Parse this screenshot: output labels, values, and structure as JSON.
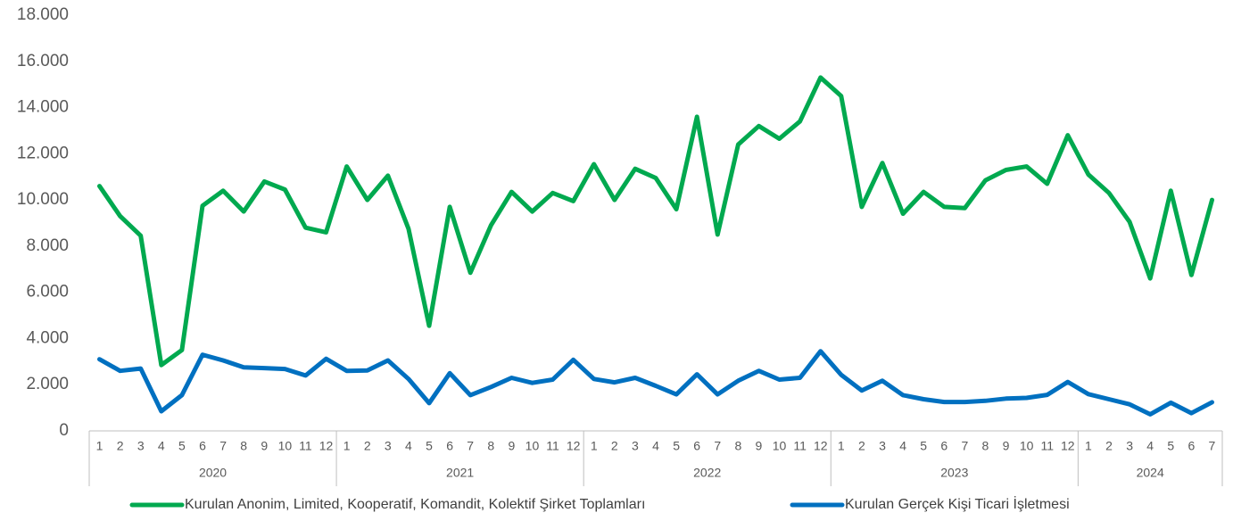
{
  "chart_data": {
    "type": "line",
    "categories": [
      "1",
      "2",
      "3",
      "4",
      "5",
      "6",
      "7",
      "8",
      "9",
      "10",
      "11",
      "12",
      "1",
      "2",
      "3",
      "4",
      "5",
      "6",
      "7",
      "8",
      "9",
      "10",
      "11",
      "12",
      "1",
      "2",
      "3",
      "4",
      "5",
      "6",
      "7",
      "8",
      "9",
      "10",
      "11",
      "12",
      "1",
      "2",
      "3",
      "4",
      "5",
      "6",
      "7",
      "8",
      "9",
      "10",
      "11",
      "12",
      "1",
      "2",
      "3",
      "4",
      "5",
      "6",
      "7"
    ],
    "category_groups": [
      {
        "label": "2020",
        "size": 12
      },
      {
        "label": "2021",
        "size": 12
      },
      {
        "label": "2022",
        "size": 12
      },
      {
        "label": "2023",
        "size": 12
      },
      {
        "label": "2024",
        "size": 7
      }
    ],
    "series": [
      {
        "name": "Kurulan Anonim, Limited, Kooperatif, Komandit, Kolektif Şirket Toplamları",
        "color": "#00a94f",
        "values": [
          10600,
          9300,
          8450,
          2850,
          3500,
          9750,
          10400,
          9500,
          10800,
          10450,
          8800,
          8600,
          11450,
          10000,
          11050,
          8750,
          4550,
          9700,
          6850,
          8900,
          10350,
          9500,
          10300,
          9950,
          11550,
          10000,
          11350,
          10950,
          9600,
          13600,
          8500,
          12400,
          13200,
          12650,
          13400,
          15300,
          14500,
          9700,
          11600,
          9400,
          10350,
          9700,
          9650,
          10850,
          11300,
          11450,
          10700,
          12800,
          11100,
          10300,
          9050,
          6600,
          10400,
          6750,
          10000
        ]
      },
      {
        "name": "Kurulan Gerçek Kişi Ticari İşletmesi",
        "color": "#0070c0",
        "values": [
          3100,
          2600,
          2700,
          850,
          1550,
          3300,
          3050,
          2750,
          2720,
          2680,
          2400,
          3120,
          2600,
          2620,
          3050,
          2250,
          1200,
          2500,
          1550,
          1900,
          2300,
          2080,
          2220,
          3080,
          2250,
          2100,
          2300,
          1950,
          1580,
          2450,
          1580,
          2170,
          2600,
          2220,
          2300,
          3450,
          2430,
          1750,
          2170,
          1550,
          1370,
          1250,
          1250,
          1300,
          1400,
          1430,
          1560,
          2120,
          1590,
          1370,
          1150,
          720,
          1220,
          770,
          1240
        ]
      }
    ],
    "ylim": [
      0,
      18000
    ],
    "yticks": [
      0,
      {
        "value": 2000,
        "label": "2.000"
      },
      {
        "value": 4000,
        "label": "4.000"
      },
      {
        "value": 6000,
        "label": "6.000"
      },
      {
        "value": 8000,
        "label": "8.000"
      },
      {
        "value": 10000,
        "label": "10.000"
      },
      {
        "value": 12000,
        "label": "12.000"
      },
      {
        "value": 14000,
        "label": "14.000"
      },
      {
        "value": 16000,
        "label": "16.000"
      },
      {
        "value": 18000,
        "label": "18.000"
      }
    ],
    "grid": false,
    "legend": "bottom"
  }
}
